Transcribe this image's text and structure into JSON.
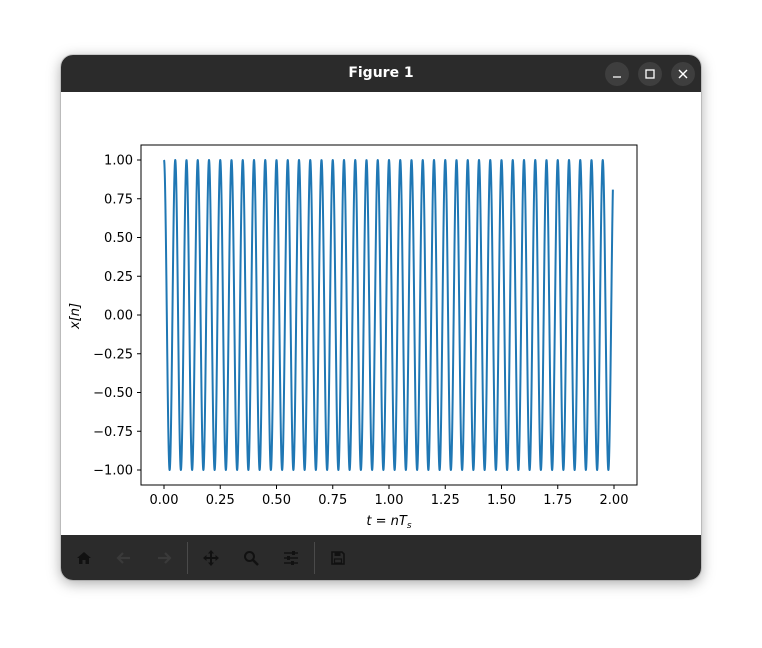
{
  "window": {
    "title": "Figure 1"
  },
  "titlebar_buttons": [
    "minimize-icon",
    "maximize-icon",
    "close-icon"
  ],
  "toolbar": {
    "buttons": [
      {
        "name": "home-icon",
        "enabled": true
      },
      {
        "name": "back-arrow-icon",
        "enabled": false
      },
      {
        "name": "forward-arrow-icon",
        "enabled": false
      },
      {
        "name": "pan-move-icon",
        "enabled": true
      },
      {
        "name": "zoom-magnifier-icon",
        "enabled": true
      },
      {
        "name": "configure-subplots-icon",
        "enabled": true
      },
      {
        "name": "save-figure-icon",
        "enabled": true
      }
    ]
  },
  "colors": {
    "line": "#1f77b4",
    "titlebar": "#2b2b2b",
    "toolbar": "#2b2b2b"
  },
  "chart_data": {
    "type": "line",
    "xlabel": "t = nTs",
    "ylabel": "x[n]",
    "xlim": [
      0.0,
      2.0
    ],
    "ylim": [
      -1.0,
      1.0
    ],
    "x_ticks": [
      "0.00",
      "0.25",
      "0.50",
      "0.75",
      "1.00",
      "1.25",
      "1.50",
      "1.75",
      "2.00"
    ],
    "y_ticks": [
      "1.00",
      "0.75",
      "0.50",
      "0.25",
      "0.00",
      "−0.25",
      "−0.50",
      "−0.75",
      "−1.00"
    ],
    "grid": false,
    "series": [
      {
        "function": "cos(2*pi*20*t)",
        "frequency_hz": 20,
        "amplitude": 1.0,
        "t_start": 0.0,
        "t_end": 1.995
      }
    ]
  }
}
